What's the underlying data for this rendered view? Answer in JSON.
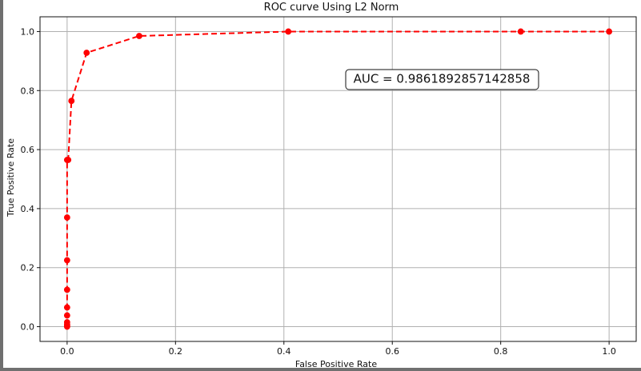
{
  "chart_data": {
    "type": "line",
    "title": "ROC curve Using L2 Norm",
    "xlabel": "False Positive Rate",
    "ylabel": "True Positive Rate",
    "xlim": [
      -0.05,
      1.05
    ],
    "ylim": [
      -0.05,
      1.05
    ],
    "grid": true,
    "x_ticks": [
      0.0,
      0.2,
      0.4,
      0.6,
      0.8,
      1.0
    ],
    "y_ticks": [
      0.0,
      0.2,
      0.4,
      0.6,
      0.8,
      1.0
    ],
    "x_tick_labels": [
      "0.0",
      "0.2",
      "0.4",
      "0.6",
      "0.8",
      "1.0"
    ],
    "y_tick_labels": [
      "0.0",
      "0.2",
      "0.4",
      "0.6",
      "0.8",
      "1.0"
    ],
    "annotation": "AUC = 0.9861892857142858",
    "series": [
      {
        "color": "#ff0000",
        "line_style": "dashed",
        "marker": "circle",
        "x": [
          0.0,
          0.0,
          0.0,
          0.0,
          0.0,
          0.0,
          0.0,
          0.0,
          0.0,
          0.0,
          0.002,
          0.008,
          0.036,
          0.133,
          0.408,
          0.837,
          1.0
        ],
        "y": [
          0.0,
          0.003,
          0.008,
          0.015,
          0.038,
          0.065,
          0.125,
          0.225,
          0.37,
          0.565,
          0.565,
          0.765,
          0.928,
          0.985,
          1.0,
          1.0,
          1.0
        ]
      }
    ]
  }
}
